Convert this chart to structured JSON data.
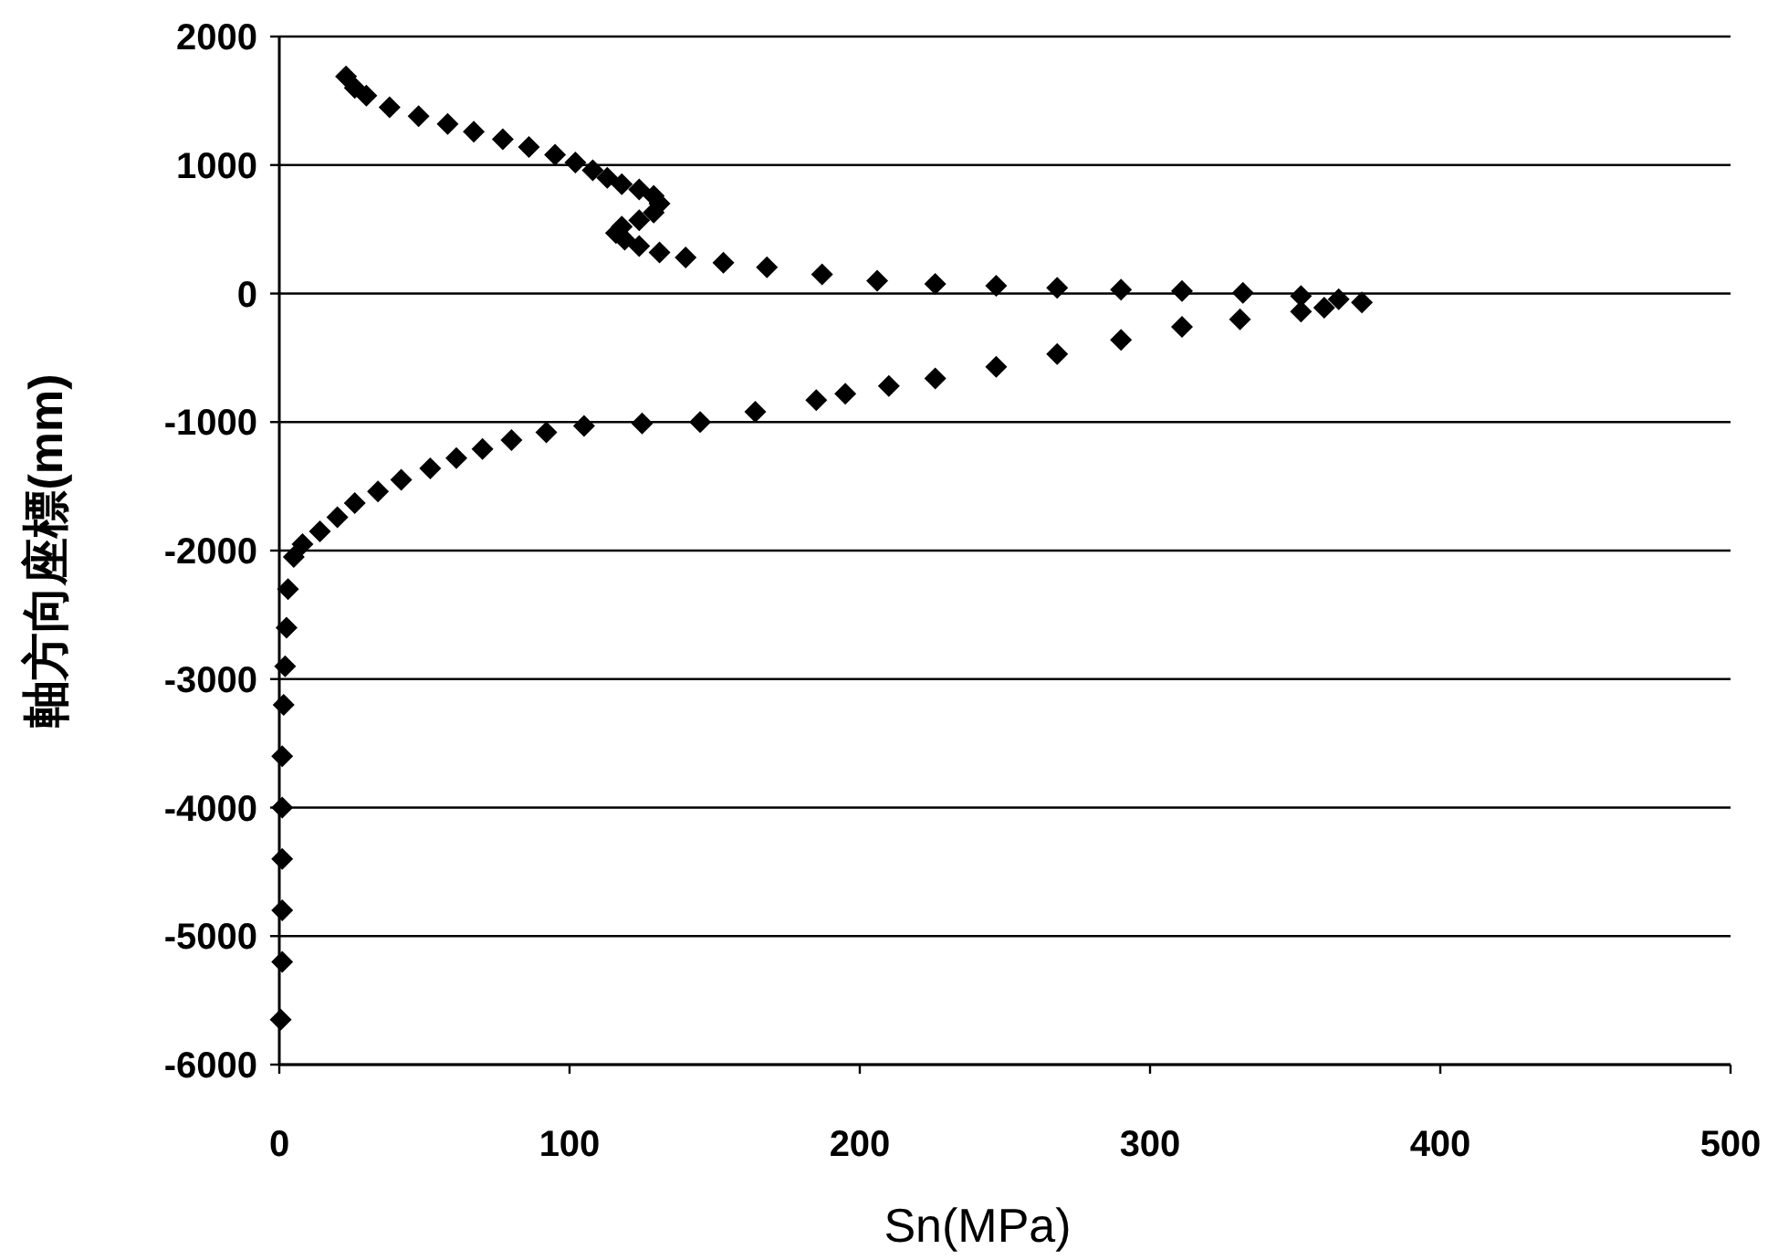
{
  "chart_data": {
    "type": "scatter",
    "xlabel": "Sn(MPa)",
    "ylabel": "軸方向座標(mm)",
    "x": [
      23,
      26,
      30,
      38,
      48,
      58,
      67,
      77,
      86,
      95,
      102,
      108,
      113,
      118,
      124,
      129,
      131,
      129,
      124,
      118,
      116,
      119,
      124,
      131,
      140,
      153,
      168,
      187,
      206,
      226,
      247,
      268,
      290,
      311,
      332,
      352,
      365,
      373,
      360,
      352,
      331,
      311,
      290,
      268,
      247,
      226,
      210,
      195,
      185,
      164,
      145,
      125,
      105,
      92,
      80,
      70,
      61,
      52,
      42,
      34,
      26,
      20,
      14,
      8,
      5,
      3,
      2.5,
      2,
      1.5,
      1,
      1,
      1,
      1,
      1,
      0.5
    ],
    "values": [
      1690,
      1600,
      1540,
      1450,
      1380,
      1320,
      1260,
      1200,
      1140,
      1080,
      1020,
      960,
      900,
      850,
      810,
      760,
      700,
      630,
      570,
      520,
      470,
      420,
      370,
      320,
      280,
      240,
      205,
      150,
      100,
      75,
      60,
      45,
      30,
      20,
      5,
      -20,
      -45,
      -70,
      -110,
      -140,
      -200,
      -260,
      -360,
      -470,
      -570,
      -660,
      -720,
      -780,
      -830,
      -920,
      -1000,
      -1010,
      -1030,
      -1080,
      -1140,
      -1210,
      -1280,
      -1360,
      -1450,
      -1540,
      -1630,
      -1740,
      -1850,
      -1950,
      -2050,
      -2300,
      -2600,
      -2900,
      -3200,
      -3600,
      -4000,
      -4400,
      -4800,
      -5200,
      -5650
    ],
    "color": "#000000",
    "marker": "diamond",
    "grid": "y",
    "xlim": [
      0,
      500
    ],
    "xticks": [
      0,
      100,
      200,
      300,
      400,
      500
    ],
    "ylim": [
      -6000,
      2000
    ],
    "yticks": [
      -6000,
      -5000,
      -4000,
      -3000,
      -2000,
      -1000,
      0,
      1000,
      2000
    ]
  }
}
